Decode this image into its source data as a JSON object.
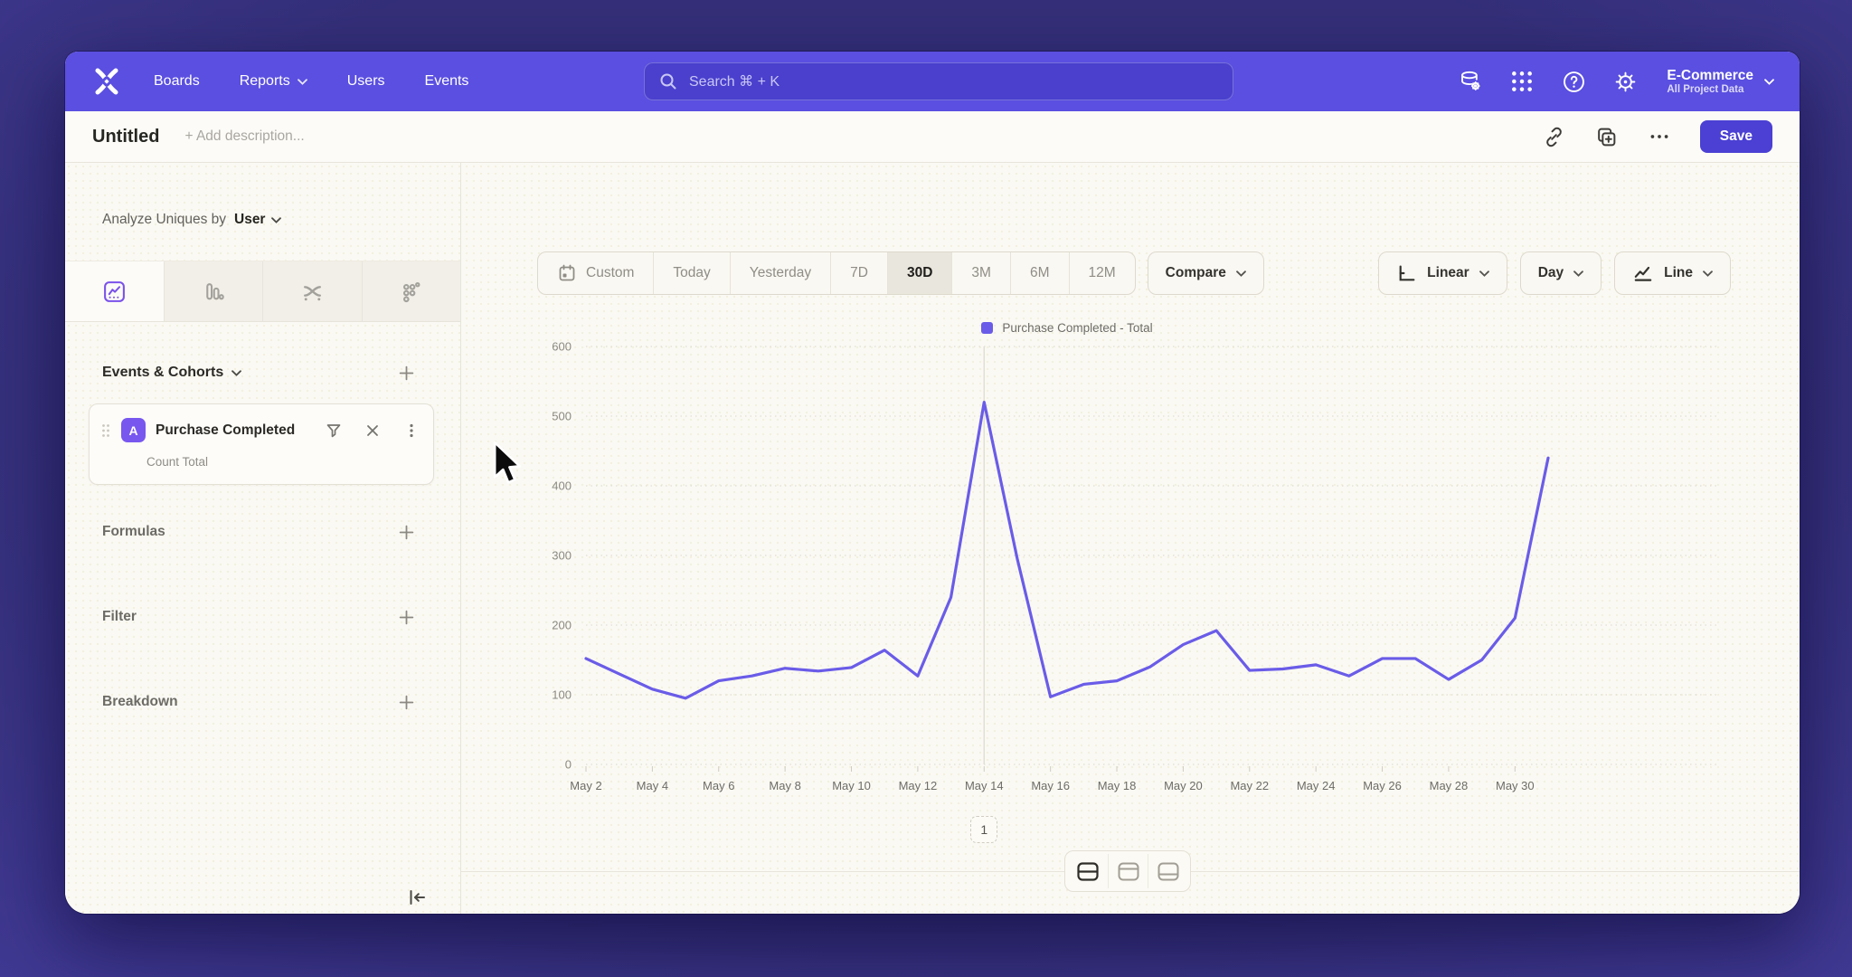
{
  "app": {
    "accent": "#6a5ce8",
    "navbar_color": "#5a4fe0"
  },
  "navbar": {
    "items": [
      {
        "label": "Boards",
        "chevron": false
      },
      {
        "label": "Reports",
        "chevron": true
      },
      {
        "label": "Users",
        "chevron": false
      },
      {
        "label": "Events",
        "chevron": false
      }
    ],
    "search_placeholder": "Search  ⌘ + K",
    "icons": [
      "data-sources-icon",
      "apps-grid-icon",
      "help-icon",
      "settings-gear-icon"
    ],
    "project_name": "E-Commerce",
    "project_scope": "All Project Data"
  },
  "subheader": {
    "title": "Untitled",
    "description_placeholder": "+ Add description...",
    "action_icons": [
      "link-icon",
      "duplicate-icon",
      "more-ellipsis-icon"
    ],
    "save_label": "Save"
  },
  "sidebar": {
    "analyze_prefix": "Analyze Uniques by",
    "analyze_value": "User",
    "chart_type_tabs": [
      "line-chart-tab-icon",
      "bar-chart-tab-icon",
      "flow-chart-tab-icon",
      "scatter-chart-tab-icon"
    ],
    "active_tab_index": 0,
    "events_section_title": "Events & Cohorts",
    "event_card": {
      "badge": "A",
      "title": "Purchase Completed",
      "subtitle": "Count Total",
      "icons": [
        "filter-funnel-icon",
        "remove-x-icon",
        "kebab-menu-icon"
      ]
    },
    "sections": [
      {
        "label": "Formulas"
      },
      {
        "label": "Filter"
      },
      {
        "label": "Breakdown"
      }
    ]
  },
  "toolbar": {
    "date_ranges": [
      "Custom",
      "Today",
      "Yesterday",
      "7D",
      "30D",
      "3M",
      "6M",
      "12M"
    ],
    "active_range": "30D",
    "compare_label": "Compare",
    "scale_label": "Linear",
    "interval_label": "Day",
    "chart_type_label": "Line"
  },
  "chart_data": {
    "type": "line",
    "title": "",
    "legend": "Purchase Completed - Total",
    "legend_position": "top-center",
    "grid": "horizontal-dotted",
    "x": [
      "May 2",
      "May 3",
      "May 4",
      "May 5",
      "May 6",
      "May 7",
      "May 8",
      "May 9",
      "May 10",
      "May 11",
      "May 12",
      "May 13",
      "May 14",
      "May 15",
      "May 16",
      "May 17",
      "May 18",
      "May 19",
      "May 20",
      "May 21",
      "May 22",
      "May 23",
      "May 24",
      "May 25",
      "May 26",
      "May 27",
      "May 28",
      "May 29",
      "May 30",
      "May 31"
    ],
    "x_tick_every": 2,
    "ylim": [
      0,
      600
    ],
    "ytick_step": 100,
    "series": [
      {
        "name": "Purchase Completed - Total",
        "color": "#6a5ce8",
        "values": [
          152,
          130,
          108,
          95,
          120,
          127,
          138,
          134,
          139,
          164,
          127,
          240,
          520,
          295,
          97,
          115,
          120,
          140,
          172,
          192,
          135,
          137,
          143,
          127,
          152,
          152,
          122,
          150,
          210,
          440
        ]
      }
    ],
    "annotation": {
      "label": "1",
      "x_index": 12
    }
  },
  "footer": {
    "layout_toggles": [
      "layout-split-rows-icon",
      "layout-panel-top-icon",
      "layout-panel-bottom-icon"
    ],
    "active_toggle_index": 0
  }
}
